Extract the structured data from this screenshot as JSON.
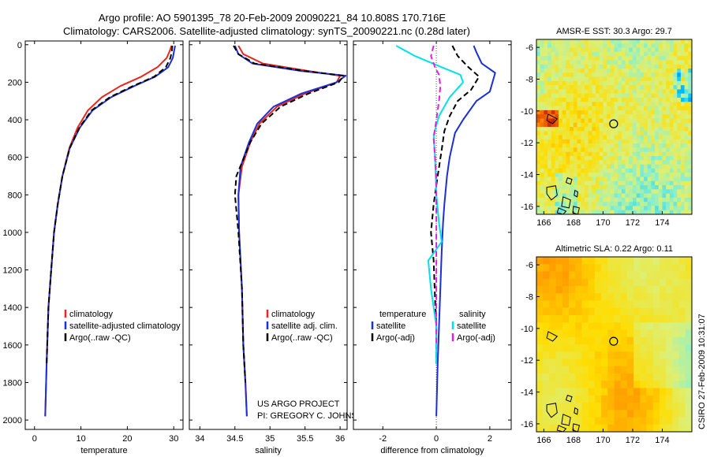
{
  "header": {
    "line1": "Argo profile: AO 5901395_78 20-Feb-2009 20090221_84 10.808S 170.716E",
    "line2": "Climatology: CARS2006. Satellite-adjusted climatology: synTS_20090221.nc (0.28d later)"
  },
  "colors": {
    "climatology": "#e8261e",
    "satellite": "#1c2fd6",
    "argo": "#000000",
    "sat_salinity": "#00e0e8",
    "argo_salinity": "#dd22dd"
  },
  "chart_data": [
    {
      "type": "line",
      "panel": "temperature",
      "title": "",
      "xlabel": "temperature",
      "ylabel": "",
      "xlim": [
        -2,
        32
      ],
      "ylim": [
        2050,
        -20
      ],
      "xticks": [
        "0",
        "10",
        "20",
        "30"
      ],
      "xtick_values": [
        0,
        10,
        20,
        30
      ],
      "yticks": [
        "0",
        "200",
        "400",
        "600",
        "800",
        "1000",
        "1200",
        "1400",
        "1600",
        "1800",
        "2000"
      ],
      "ytick_values": [
        0,
        200,
        400,
        600,
        800,
        1000,
        1200,
        1400,
        1600,
        1800,
        2000
      ],
      "legend": [
        "climatology",
        "satellite-adjusted climatology",
        "Argo(..raw -QC)"
      ],
      "series": [
        {
          "name": "climatology",
          "color_key": "climatology",
          "dash": "solid",
          "x": [
            29.5,
            29.2,
            28.5,
            26.5,
            23.0,
            18.5,
            14.5,
            11.5,
            9.3,
            7.5,
            6.0,
            5.0,
            4.2,
            3.6,
            3.0,
            2.6,
            2.3
          ],
          "y": [
            5,
            30,
            70,
            120,
            170,
            220,
            280,
            350,
            440,
            550,
            700,
            850,
            1000,
            1200,
            1400,
            1700,
            1980
          ]
        },
        {
          "name": "satellite-adjusted climatology",
          "color_key": "satellite",
          "dash": "solid",
          "x": [
            30.3,
            30.1,
            29.8,
            28.8,
            26.0,
            21.5,
            16.5,
            12.5,
            9.8,
            7.6,
            6.0,
            5.0,
            4.2,
            3.6,
            3.0,
            2.6,
            2.3
          ],
          "y": [
            5,
            30,
            70,
            120,
            170,
            220,
            280,
            350,
            440,
            550,
            700,
            850,
            1000,
            1200,
            1400,
            1700,
            1980
          ]
        },
        {
          "name": "Argo(..raw -QC)",
          "color_key": "argo",
          "dash": "dash",
          "x": [
            29.7,
            29.6,
            29.3,
            28.3,
            25.8,
            21.2,
            16.2,
            12.3,
            9.7,
            7.6,
            6.0,
            5.0,
            4.2,
            3.6,
            3.0,
            2.6
          ],
          "y": [
            5,
            30,
            70,
            120,
            170,
            220,
            280,
            350,
            440,
            550,
            700,
            850,
            1000,
            1200,
            1400,
            1700
          ]
        }
      ]
    },
    {
      "type": "line",
      "panel": "salinity",
      "title": "",
      "xlabel": "salinity",
      "ylabel": "",
      "xlim": [
        33.85,
        36.1
      ],
      "ylim": [
        2050,
        -20
      ],
      "xticks": [
        "34",
        "34.5",
        "35",
        "35.5",
        "36"
      ],
      "xtick_values": [
        34,
        34.5,
        35,
        35.5,
        36
      ],
      "legend": [
        "climatology",
        "satellite adj. clim.",
        "Argo(..raw -QC)"
      ],
      "series": [
        {
          "name": "climatology",
          "color_key": "climatology",
          "dash": "solid",
          "x": [
            34.55,
            34.62,
            34.9,
            35.55,
            36.0,
            35.95,
            35.5,
            35.1,
            34.85,
            34.72,
            34.6,
            34.55,
            34.56,
            34.6,
            34.62,
            34.65,
            34.67
          ],
          "y": [
            5,
            50,
            100,
            140,
            165,
            200,
            260,
            330,
            420,
            520,
            650,
            800,
            1000,
            1300,
            1600,
            1800,
            1980
          ]
        },
        {
          "name": "satellite adj. clim.",
          "color_key": "satellite",
          "dash": "solid",
          "x": [
            34.5,
            34.55,
            34.75,
            35.45,
            36.08,
            35.95,
            35.45,
            35.05,
            34.82,
            34.7,
            34.58,
            34.55,
            34.56,
            34.6,
            34.62,
            34.65,
            34.67
          ],
          "y": [
            5,
            50,
            100,
            140,
            165,
            200,
            260,
            330,
            420,
            520,
            650,
            800,
            1000,
            1300,
            1600,
            1800,
            1980
          ]
        },
        {
          "name": "Argo(..raw -QC)",
          "color_key": "argo",
          "dash": "dash",
          "x": [
            34.48,
            34.55,
            34.78,
            35.5,
            36.05,
            35.98,
            35.55,
            35.15,
            34.88,
            34.72,
            34.52,
            34.5,
            34.55,
            34.6,
            34.62,
            34.65
          ],
          "y": [
            5,
            50,
            100,
            140,
            165,
            200,
            260,
            330,
            420,
            520,
            700,
            800,
            1000,
            1300,
            1600,
            1800
          ]
        }
      ],
      "annotation": [
        "US ARGO PROJECT",
        "PI: GREGORY C. JOHNSON"
      ]
    },
    {
      "type": "line",
      "panel": "difference",
      "title": "",
      "xlabel": "difference from climatology",
      "ylabel": "",
      "xlim": [
        -3.1,
        2.8
      ],
      "ylim": [
        2050,
        -20
      ],
      "xticks": [
        "-2",
        "0",
        "2"
      ],
      "xtick_values": [
        -2,
        0,
        2
      ],
      "legend": [
        "temperature",
        "satellite",
        "Argo(-adj)",
        "salinity",
        "satellite",
        "Argo(-adj)"
      ],
      "series": [
        {
          "name": "temperature satellite",
          "color_key": "satellite",
          "dash": "solid",
          "x": [
            1.4,
            1.5,
            1.7,
            2.2,
            2.0,
            1.5,
            1.0,
            0.7,
            0.5,
            0.4,
            0.3,
            0.25,
            0.2,
            0.15,
            0.1,
            0.05,
            0.0
          ],
          "y": [
            5,
            40,
            100,
            150,
            250,
            300,
            400,
            470,
            600,
            700,
            850,
            950,
            1100,
            1300,
            1500,
            1700,
            1980
          ]
        },
        {
          "name": "temperature Argo(-adj)",
          "color_key": "argo",
          "dash": "dash",
          "x": [
            0.6,
            0.8,
            1.2,
            1.6,
            1.3,
            0.8,
            0.5,
            0.3,
            0.2,
            0.05,
            -0.1,
            -0.2,
            -0.1,
            -0.05,
            0.0,
            0.0
          ],
          "y": [
            5,
            60,
            120,
            170,
            240,
            300,
            380,
            460,
            560,
            700,
            850,
            1000,
            1150,
            1350,
            1500,
            1700
          ]
        },
        {
          "name": "salinity satellite",
          "color_key": "sat_salinity",
          "dash": "solid",
          "x": [
            -1.5,
            -0.8,
            0.2,
            0.9,
            1.0,
            0.5,
            0.1,
            -0.1,
            -0.05,
            0.0,
            0.1,
            0.2,
            -0.3,
            -0.2,
            0.0,
            0.0
          ],
          "y": [
            5,
            60,
            120,
            160,
            200,
            280,
            380,
            480,
            600,
            800,
            950,
            1050,
            1150,
            1300,
            1500,
            1700
          ]
        },
        {
          "name": "salinity Argo(-adj)",
          "color_key": "argo_salinity",
          "dash": "dash",
          "x": [
            -0.1,
            -0.2,
            -0.05,
            0.1,
            0.15,
            0.1,
            0.0,
            -0.1,
            0.0,
            0.0
          ],
          "y": [
            5,
            60,
            120,
            160,
            220,
            300,
            400,
            500,
            700,
            1600
          ]
        }
      ]
    },
    {
      "type": "heatmap",
      "panel": "sst-map",
      "title": "AMSR-E SST: 30.3  Argo: 29.7",
      "xlabel": "",
      "ylabel": "",
      "xlim": [
        165.5,
        176
      ],
      "ylim": [
        -16.5,
        -5.5
      ],
      "xticks": [
        "166",
        "168",
        "170",
        "172",
        "174"
      ],
      "xtick_values": [
        166,
        168,
        170,
        172,
        174
      ],
      "yticks": [
        "-6",
        "-8",
        "-10",
        "-12",
        "-14",
        "-16"
      ],
      "ytick_values": [
        -6,
        -8,
        -10,
        -12,
        -14,
        -16
      ],
      "marker": {
        "lon": 170.716,
        "lat": -10.808
      }
    },
    {
      "type": "heatmap",
      "panel": "sla-map",
      "title": "Altimetric SLA: 0.22  Argo: 0.11",
      "xlabel": "",
      "ylabel": "",
      "xlim": [
        165.5,
        176
      ],
      "ylim": [
        -16.5,
        -5.5
      ],
      "xticks": [
        "166",
        "168",
        "170",
        "172",
        "174"
      ],
      "xtick_values": [
        166,
        168,
        170,
        172,
        174
      ],
      "yticks": [
        "-6",
        "-8",
        "-10",
        "-12",
        "-14",
        "-16"
      ],
      "ytick_values": [
        -6,
        -8,
        -10,
        -12,
        -14,
        -16
      ],
      "marker": {
        "lon": 170.716,
        "lat": -10.808
      }
    }
  ],
  "side_stamp": "CSIRO 27-Feb-2009 10:31:07"
}
